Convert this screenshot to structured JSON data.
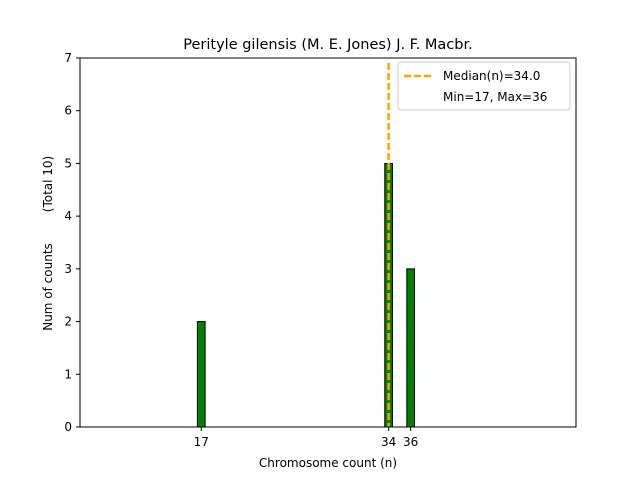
{
  "chart_data": {
    "type": "bar",
    "title": "Perityle gilensis (M. E. Jones) J. F. Macbr.",
    "xlabel": "Chromosome count (n)",
    "ylabel": "Num of counts",
    "ylabel_note": "(Total 10)",
    "x": [
      17,
      34,
      36
    ],
    "x_tick_labels": [
      "17",
      "34",
      "36"
    ],
    "values": [
      2,
      5,
      3
    ],
    "xlim": [
      6,
      51
    ],
    "ylim": [
      0,
      7
    ],
    "y_ticks": [
      0,
      1,
      2,
      3,
      4,
      5,
      6,
      7
    ],
    "bar_width": 0.7,
    "bar_color": "#008000",
    "bar_edge_color": "#000000",
    "baseline_span": [
      6,
      32
    ],
    "median": {
      "value": 34.0,
      "label": "Median(n)=34.0",
      "color": "#FFA500"
    },
    "range_label": "Min=17, Max=36",
    "legend_position": "top-right",
    "grid": false
  }
}
